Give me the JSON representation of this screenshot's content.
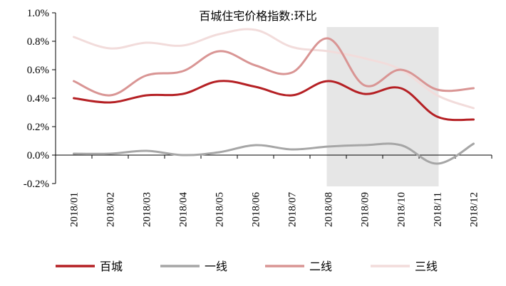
{
  "chart_data": {
    "type": "line",
    "title": "百城住宅价格指数:环比",
    "xlabel": "",
    "ylabel": "",
    "categories": [
      "2018/01",
      "2018/02",
      "2018/03",
      "2018/04",
      "2018/05",
      "2018/06",
      "2018/07",
      "2018/08",
      "2018/09",
      "2018/10",
      "2018/11",
      "2018/12"
    ],
    "ylim": [
      -0.2,
      1.0
    ],
    "yticks": [
      -0.2,
      0.0,
      0.2,
      0.4,
      0.6,
      0.8,
      1.0
    ],
    "ytick_labels": [
      "-0.2%",
      "0.0%",
      "0.2%",
      "0.4%",
      "0.6%",
      "0.8%",
      "1.0%"
    ],
    "grid": false,
    "legend_position": "bottom",
    "highlight_region": {
      "from": "2018/08",
      "to": "2018/11",
      "color": "#e6e6e6"
    },
    "series": [
      {
        "name": "百城",
        "color": "#b52024",
        "values": [
          0.4,
          0.37,
          0.42,
          0.43,
          0.52,
          0.48,
          0.42,
          0.52,
          0.43,
          0.47,
          0.27,
          0.25
        ]
      },
      {
        "name": "一线",
        "color": "#a6a6a6",
        "values": [
          0.01,
          0.01,
          0.03,
          0.0,
          0.02,
          0.07,
          0.04,
          0.06,
          0.07,
          0.07,
          -0.06,
          0.08
        ]
      },
      {
        "name": "二线",
        "color": "#d99594",
        "values": [
          0.52,
          0.42,
          0.56,
          0.59,
          0.73,
          0.63,
          0.58,
          0.82,
          0.49,
          0.6,
          0.46,
          0.47
        ]
      },
      {
        "name": "三线",
        "color": "#f2dcdb",
        "values": [
          0.83,
          0.75,
          0.79,
          0.77,
          0.85,
          0.88,
          0.76,
          0.73,
          0.68,
          0.6,
          0.42,
          0.33
        ]
      }
    ]
  }
}
